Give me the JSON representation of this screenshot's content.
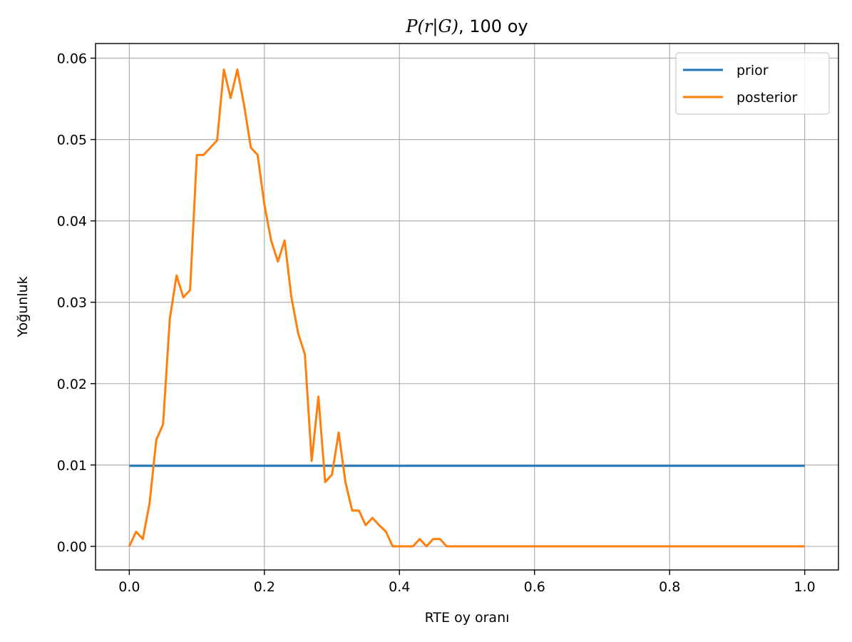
{
  "chart_data": {
    "type": "line",
    "title_prefix": "P(r|G)",
    "title_suffix": ", 100 oy",
    "xlabel": "RTE oy oranı",
    "ylabel": "Yoğunluk",
    "xlim": [
      -0.05,
      1.05
    ],
    "ylim": [
      -0.0029,
      0.0618
    ],
    "xticks": [
      0.0,
      0.2,
      0.4,
      0.6,
      0.8,
      1.0
    ],
    "xtick_labels": [
      "0.0",
      "0.2",
      "0.4",
      "0.6",
      "0.8",
      "1.0"
    ],
    "yticks": [
      0.0,
      0.01,
      0.02,
      0.03,
      0.04,
      0.05,
      0.06
    ],
    "ytick_labels": [
      "0.00",
      "0.01",
      "0.02",
      "0.03",
      "0.04",
      "0.05",
      "0.06"
    ],
    "grid": true,
    "legend_position": "top-right",
    "series": [
      {
        "name": "prior",
        "color": "#1f77b4",
        "x": [
          0.0,
          1.0
        ],
        "y": [
          0.0099,
          0.0099
        ]
      },
      {
        "name": "posterior",
        "color": "#ff7f0e",
        "x": [
          0.0,
          0.01,
          0.02,
          0.03,
          0.04,
          0.05,
          0.06,
          0.07,
          0.08,
          0.09,
          0.1,
          0.11,
          0.12,
          0.13,
          0.14,
          0.15,
          0.16,
          0.17,
          0.18,
          0.19,
          0.2,
          0.21,
          0.22,
          0.23,
          0.24,
          0.25,
          0.26,
          0.27,
          0.28,
          0.29,
          0.3,
          0.31,
          0.32,
          0.33,
          0.34,
          0.35,
          0.36,
          0.37,
          0.38,
          0.39,
          0.4,
          0.41,
          0.42,
          0.43,
          0.44,
          0.45,
          0.46,
          0.47,
          0.48,
          1.0
        ],
        "y": [
          0.0,
          0.0018,
          0.0009,
          0.0053,
          0.0131,
          0.015,
          0.028,
          0.0333,
          0.0306,
          0.0315,
          0.0481,
          0.0481,
          0.049,
          0.0499,
          0.0586,
          0.0551,
          0.0586,
          0.0542,
          0.049,
          0.0481,
          0.042,
          0.0376,
          0.035,
          0.0376,
          0.0306,
          0.0262,
          0.0236,
          0.0105,
          0.0184,
          0.0079,
          0.0088,
          0.014,
          0.0079,
          0.0044,
          0.0044,
          0.0026,
          0.0035,
          0.0026,
          0.0018,
          0.0,
          0.0,
          0.0,
          0.0,
          0.0009,
          0.0,
          0.0009,
          0.0009,
          0.0,
          0.0,
          0.0
        ]
      }
    ]
  }
}
